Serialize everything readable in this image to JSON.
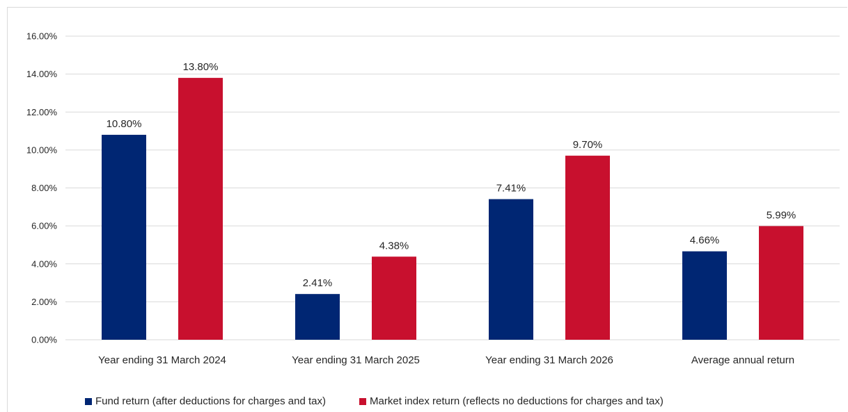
{
  "chart_data": {
    "type": "bar",
    "categories": [
      "Year ending 31 March 2024",
      "Year ending 31 March 2025",
      "Year ending 31 March 2026",
      "Average annual return"
    ],
    "series": [
      {
        "name": "Fund return (after deductions for charges and tax)",
        "values": [
          10.8,
          2.41,
          7.41,
          4.66
        ],
        "labels": [
          "10.80%",
          "2.41%",
          "7.41%",
          "4.66%"
        ],
        "color": "#002673"
      },
      {
        "name": "Market index return (reflects no deductions for charges and tax)",
        "values": [
          13.8,
          4.38,
          9.7,
          5.99
        ],
        "labels": [
          "13.80%",
          "4.38%",
          "9.70%",
          "5.99%"
        ],
        "color": "#c8102e"
      }
    ],
    "y_ticks": [
      "0.00%",
      "2.00%",
      "4.00%",
      "6.00%",
      "8.00%",
      "10.00%",
      "12.00%",
      "14.00%",
      "16.00%"
    ],
    "ylim": [
      0,
      16
    ],
    "grid": true,
    "legend_position": "bottom"
  }
}
